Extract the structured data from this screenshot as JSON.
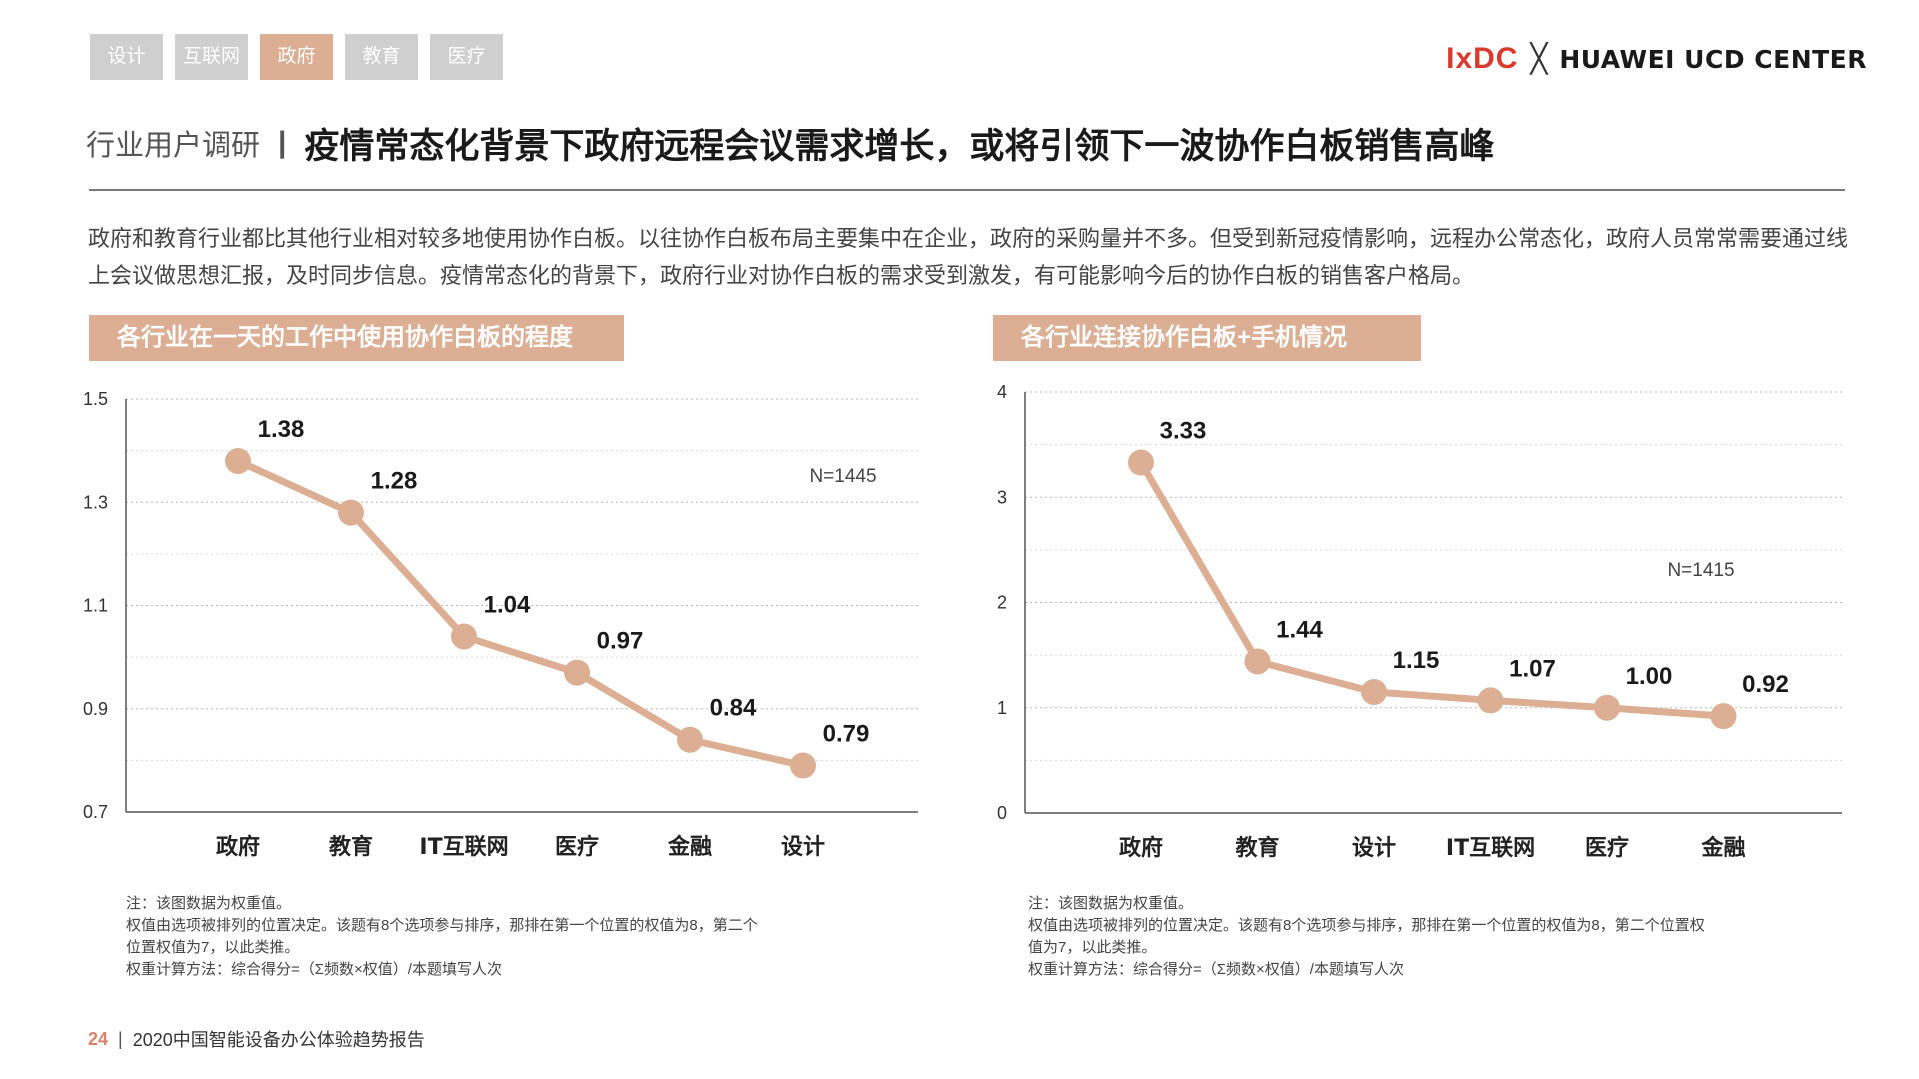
{
  "tabs": [
    {
      "label": "设计",
      "active": false
    },
    {
      "label": "互联网",
      "active": false
    },
    {
      "label": "政府",
      "active": true
    },
    {
      "label": "教育",
      "active": false
    },
    {
      "label": "医疗",
      "active": false
    }
  ],
  "brand": {
    "ixdc": "IxDC",
    "cross": "╳",
    "partner": "HUAWEI UCD CENTER"
  },
  "header": {
    "section": "行业用户调研",
    "separator": "|",
    "title": "疫情常态化背景下政府远程会议需求增长，或将引领下一波协作白板销售高峰"
  },
  "intro": "政府和教育行业都比其他行业相对较多地使用协作白板。以往协作白板布局主要集中在企业，政府的采购量并不多。但受到新冠疫情影响，远程办公常态化，政府人员常常需要通过线上会议做思想汇报，及时同步信息。疫情常态化的背景下，政府行业对协作白板的需求受到激发，有可能影响今后的协作白板的销售客户格局。",
  "chart_data": [
    {
      "type": "line",
      "title": "各行业在一天的工作中使用协作白板的程度",
      "categories": [
        "政府",
        "教育",
        "IT互联网",
        "医疗",
        "金融",
        "设计"
      ],
      "values": [
        1.38,
        1.28,
        1.04,
        0.97,
        0.84,
        0.79
      ],
      "value_labels": [
        "1.38",
        "1.28",
        "1.04",
        "0.97",
        "0.84",
        "0.79"
      ],
      "ylim": [
        0.7,
        1.5
      ],
      "yticks": [
        0.7,
        0.9,
        1.1,
        1.3,
        1.5
      ],
      "ytick_labels": [
        "0.7",
        "0.9",
        "1.1",
        "1.3",
        "1.5"
      ],
      "sample_label": "N=1445",
      "line_color": "#dcae94",
      "grid": true
    },
    {
      "type": "line",
      "title": "各行业连接协作白板+手机情况",
      "categories": [
        "政府",
        "教育",
        "设计",
        "IT互联网",
        "医疗",
        "金融"
      ],
      "values": [
        3.33,
        1.44,
        1.15,
        1.07,
        1.0,
        0.92
      ],
      "value_labels": [
        "3.33",
        "1.44",
        "1.15",
        "1.07",
        "1.00",
        "0.92"
      ],
      "ylim": [
        0,
        4
      ],
      "yticks": [
        0,
        1,
        2,
        3,
        4
      ],
      "ytick_labels": [
        "0",
        "1",
        "2",
        "3",
        "4"
      ],
      "sample_label": "N=1415",
      "line_color": "#dcae94",
      "grid": true
    }
  ],
  "notes": {
    "left": [
      "注：该图数据为权重值。",
      "权值由选项被排列的位置决定。该题有8个选项参与排序，那排在第一个位置的权值为8，第二个",
      "位置权值为7，以此类推。",
      "权重计算方法：综合得分=（Σ频数×权值）/本题填写人次"
    ],
    "right": [
      "注：该图数据为权重值。",
      "权值由选项被排列的位置决定。该题有8个选项参与排序，那排在第一个位置的权值为8，第二个位置权",
      "值为7，以此类推。",
      "权重计算方法：综合得分=（Σ频数×权值）/本题填写人次"
    ]
  },
  "footer": {
    "page_number": "24",
    "separator": "|",
    "report_title": "2020中国智能设备办公体验趋势报告"
  }
}
